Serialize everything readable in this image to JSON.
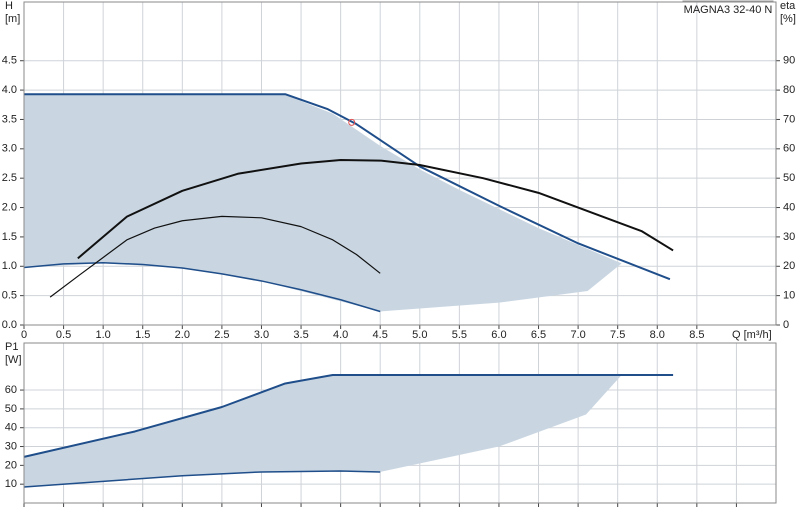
{
  "chart_data": [
    {
      "type": "line",
      "label": "MAGNA3 32-40 N",
      "ylabel": [
        "H",
        "[m]"
      ],
      "y2label": [
        "eta",
        "[%]"
      ],
      "xlabel": "Q [m³/h]",
      "xlim": [
        0,
        9.5
      ],
      "ylim": [
        0,
        5.5
      ],
      "y2lim": [
        0,
        110
      ],
      "grid": true,
      "xticks": [
        0,
        0.5,
        {
          "value": 1,
          "label": "1.0"
        },
        1.5,
        {
          "value": 2,
          "label": "2.0"
        },
        2.5,
        {
          "value": 3,
          "label": "3.0"
        },
        3.5,
        {
          "value": 4,
          "label": "4.0"
        },
        4.5,
        {
          "value": 5,
          "label": "5.0"
        },
        5.5,
        {
          "value": 6,
          "label": "6.0"
        },
        6.5,
        {
          "value": 7,
          "label": "7.0"
        },
        7.5,
        {
          "value": 8,
          "label": "8.0"
        },
        8.5
      ],
      "yticks": [
        {
          "value": 0,
          "label": "0.0"
        },
        0.5,
        {
          "value": 1,
          "label": "1.0"
        },
        1.5,
        {
          "value": 2,
          "label": "2.0"
        },
        2.5,
        {
          "value": 3,
          "label": "3.0"
        },
        3.5,
        {
          "value": 4,
          "label": "4.0"
        },
        4.5
      ],
      "y2ticks": [
        0,
        10,
        20,
        30,
        40,
        50,
        60,
        70,
        80,
        90
      ],
      "regions": [
        {
          "color": "#c9d6e2",
          "x": [
            0,
            1,
            2,
            3,
            4.5,
            6,
            7.12,
            7.55,
            6.5,
            5.5,
            5,
            4.5,
            3.9,
            3.3,
            0
          ],
          "values": [
            0.98,
            1.05,
            0.97,
            0.75,
            0.23,
            0.38,
            0.58,
            1.05,
            1.65,
            2.3,
            2.65,
            3.05,
            3.6,
            3.92,
            3.93
          ]
        }
      ],
      "series": [
        {
          "color": "#1f4e8a",
          "line_width": 2,
          "x": [
            0,
            3.3,
            3.83,
            4.2,
            5,
            6,
            7,
            8.16
          ],
          "values": [
            3.93,
            3.93,
            3.68,
            3.42,
            2.7,
            2.03,
            1.39,
            0.78
          ]
        },
        {
          "color": "#1f4e8a",
          "line_width": 1.5,
          "x": [
            0,
            0.5,
            1,
            1.5,
            2,
            2.5,
            3,
            3.5,
            4,
            4.5
          ],
          "values": [
            0.98,
            1.04,
            1.06,
            1.03,
            0.97,
            0.87,
            0.75,
            0.6,
            0.43,
            0.23
          ]
        },
        {
          "color": "#111111",
          "line_width": 2,
          "axis": "y2",
          "x": [
            0.68,
            1.3,
            2,
            2.7,
            3.5,
            4,
            4.5,
            5,
            5.8,
            6.5,
            7.2,
            7.8,
            8.2
          ],
          "values": [
            22.7,
            36.9,
            45.7,
            51.5,
            55,
            56.2,
            56,
            54.5,
            50,
            45,
            38,
            32,
            25.4
          ]
        },
        {
          "color": "#111111",
          "line_width": 1.2,
          "axis": "y2",
          "x": [
            0.33,
            0.7,
            1,
            1.3,
            1.65,
            2,
            2.5,
            3,
            3.5,
            3.9,
            4.2,
            4.5
          ],
          "values": [
            9.5,
            17,
            23,
            29,
            33,
            35.5,
            37,
            36.5,
            33.5,
            29,
            24,
            17.6
          ]
        }
      ],
      "marker": {
        "x": 4.14,
        "value": 3.45,
        "color": "#e05050"
      }
    },
    {
      "type": "line",
      "ylabel": [
        "P1",
        "[W]"
      ],
      "xlim": [
        0,
        9.5
      ],
      "ylim": [
        0,
        85
      ],
      "grid": true,
      "xticks": [
        0,
        0.5,
        1,
        1.5,
        2,
        2.5,
        3,
        3.5,
        4,
        4.5,
        5,
        5.5,
        6,
        6.5,
        7,
        7.5,
        8,
        8.5,
        9
      ],
      "yticks": [
        10,
        20,
        30,
        40,
        50,
        60
      ],
      "regions": [
        {
          "color": "#c9d6e2",
          "x": [
            0,
            1,
            2,
            3,
            4,
            4.5,
            6,
            7.1,
            7.55,
            3.9,
            3.3,
            2.5,
            1.4,
            0
          ],
          "values": [
            8.5,
            11.5,
            14.5,
            16.5,
            17,
            16.5,
            30,
            47,
            68,
            68,
            63.5,
            51,
            38,
            24.5
          ]
        }
      ],
      "series": [
        {
          "color": "#1f4e8a",
          "line_width": 2,
          "x": [
            0,
            1.4,
            2.5,
            3.3,
            3.9,
            8.2
          ],
          "values": [
            24.5,
            38,
            51,
            63.5,
            68,
            68
          ]
        },
        {
          "color": "#1f4e8a",
          "line_width": 1.5,
          "x": [
            0,
            1,
            2,
            3,
            4,
            4.5
          ],
          "values": [
            8.5,
            11.5,
            14.5,
            16.5,
            17,
            16.5
          ]
        }
      ]
    }
  ]
}
